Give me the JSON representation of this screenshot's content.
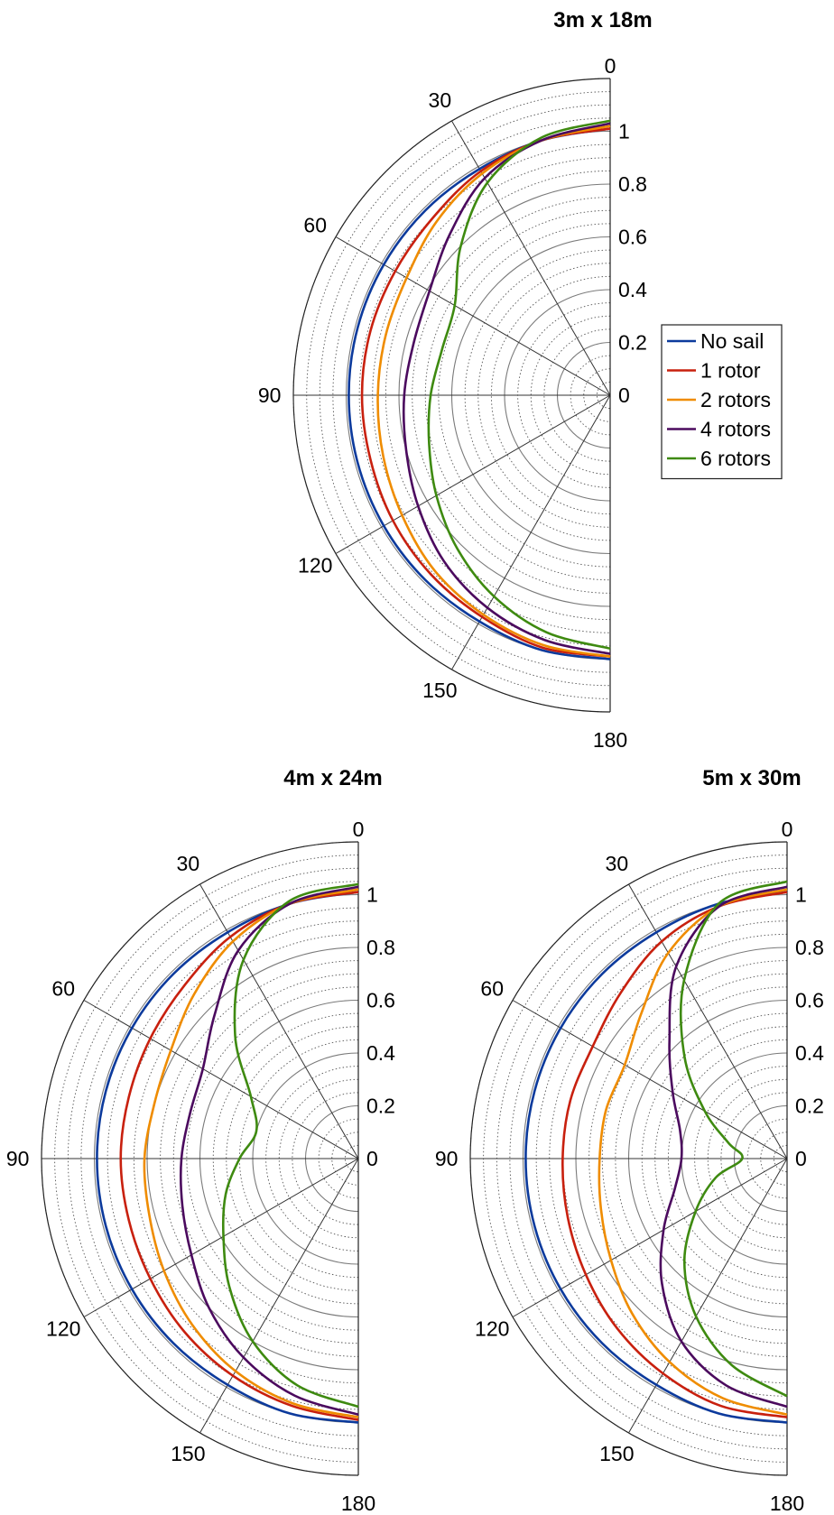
{
  "chart_data": [
    {
      "type": "polar-line",
      "title": "3m x 18m",
      "theta_ticks": [
        0,
        30,
        60,
        90,
        120,
        150,
        180
      ],
      "r_ticks": [
        0,
        0.2,
        0.4,
        0.6,
        0.8,
        1
      ],
      "r_tick_labels": [
        "0",
        "0.2",
        "0.4",
        "0.6",
        "0.8",
        "1"
      ],
      "rlim": [
        0,
        1.2
      ],
      "theta_range": [
        0,
        180
      ],
      "grid": true,
      "legend": {
        "placement": "right",
        "entries": [
          "No sail",
          "1 rotor",
          "2 rotors",
          "4 rotors",
          "6 rotors"
        ]
      },
      "series": [
        {
          "name": "No sail",
          "color": "#0c3a9c",
          "theta": [
            0,
            15,
            30,
            45,
            60,
            75,
            90,
            105,
            120,
            135,
            150,
            165,
            180
          ],
          "r": [
            1.01,
            1.0,
            0.99,
            0.99,
            0.99,
            0.99,
            0.99,
            0.99,
            0.99,
            0.99,
            0.99,
            1.0,
            1.0
          ]
        },
        {
          "name": "1 rotor",
          "color": "#c8200e",
          "theta": [
            0,
            15,
            30,
            45,
            60,
            75,
            90,
            105,
            120,
            135,
            150,
            165,
            180
          ],
          "r": [
            1.01,
            1.0,
            0.98,
            0.95,
            0.94,
            0.94,
            0.94,
            0.94,
            0.95,
            0.96,
            0.97,
            0.99,
            0.99
          ]
        },
        {
          "name": "2 rotors",
          "color": "#ef8c00",
          "theta": [
            0,
            15,
            30,
            45,
            60,
            75,
            90,
            105,
            120,
            135,
            150,
            165,
            180
          ],
          "r": [
            1.02,
            1.0,
            0.97,
            0.93,
            0.89,
            0.88,
            0.88,
            0.89,
            0.91,
            0.94,
            0.96,
            0.98,
            0.99
          ]
        },
        {
          "name": "4 rotors",
          "color": "#4b0a5e",
          "theta": [
            0,
            15,
            30,
            45,
            60,
            75,
            90,
            105,
            120,
            135,
            150,
            165,
            180
          ],
          "r": [
            1.03,
            1.0,
            0.95,
            0.86,
            0.79,
            0.77,
            0.78,
            0.8,
            0.84,
            0.89,
            0.93,
            0.96,
            0.98
          ]
        },
        {
          "name": "6 rotors",
          "color": "#3e8a10",
          "theta": [
            0,
            15,
            30,
            45,
            60,
            75,
            90,
            105,
            120,
            135,
            150,
            165,
            180
          ],
          "r": [
            1.04,
            1.01,
            0.93,
            0.8,
            0.68,
            0.66,
            0.68,
            0.71,
            0.76,
            0.82,
            0.88,
            0.93,
            0.96
          ]
        }
      ]
    },
    {
      "type": "polar-line",
      "title": "4m x 24m",
      "theta_ticks": [
        0,
        30,
        60,
        90,
        120,
        150,
        180
      ],
      "r_ticks": [
        0,
        0.2,
        0.4,
        0.6,
        0.8,
        1
      ],
      "r_tick_labels": [
        "0",
        "0.2",
        "0.4",
        "0.6",
        "0.8",
        "1"
      ],
      "rlim": [
        0,
        1.2
      ],
      "theta_range": [
        0,
        180
      ],
      "grid": true,
      "series": [
        {
          "name": "No sail",
          "color": "#0c3a9c",
          "theta": [
            0,
            15,
            30,
            45,
            60,
            75,
            90,
            105,
            120,
            135,
            150,
            165,
            180
          ],
          "r": [
            1.01,
            1.0,
            0.99,
            0.99,
            0.99,
            0.99,
            0.99,
            0.99,
            0.99,
            0.99,
            0.99,
            1.0,
            1.0
          ]
        },
        {
          "name": "1 rotor",
          "color": "#c8200e",
          "theta": [
            0,
            15,
            30,
            45,
            60,
            75,
            90,
            105,
            120,
            135,
            150,
            165,
            180
          ],
          "r": [
            1.01,
            1.0,
            0.97,
            0.93,
            0.91,
            0.9,
            0.9,
            0.9,
            0.91,
            0.93,
            0.95,
            0.97,
            0.99
          ]
        },
        {
          "name": "2 rotors",
          "color": "#ef8c00",
          "theta": [
            0,
            15,
            30,
            45,
            60,
            75,
            90,
            105,
            120,
            135,
            150,
            165,
            180
          ],
          "r": [
            1.02,
            1.0,
            0.95,
            0.88,
            0.82,
            0.8,
            0.81,
            0.82,
            0.85,
            0.89,
            0.93,
            0.96,
            0.98
          ]
        },
        {
          "name": "4 rotors",
          "color": "#4b0a5e",
          "theta": [
            0,
            15,
            30,
            45,
            60,
            75,
            90,
            105,
            120,
            135,
            150,
            165,
            180
          ],
          "r": [
            1.03,
            1.0,
            0.91,
            0.77,
            0.68,
            0.66,
            0.67,
            0.69,
            0.73,
            0.8,
            0.87,
            0.93,
            0.97
          ]
        },
        {
          "name": "6 rotors",
          "color": "#3e8a10",
          "theta": [
            0,
            15,
            30,
            45,
            60,
            75,
            90,
            105,
            120,
            135,
            150,
            165,
            180
          ],
          "r": [
            1.04,
            1.01,
            0.87,
            0.66,
            0.47,
            0.4,
            0.45,
            0.52,
            0.59,
            0.69,
            0.8,
            0.89,
            0.94
          ]
        }
      ]
    },
    {
      "type": "polar-line",
      "title": "5m x 30m",
      "theta_ticks": [
        0,
        30,
        60,
        90,
        120,
        150,
        180
      ],
      "r_ticks": [
        0,
        0.2,
        0.4,
        0.6,
        0.8,
        1
      ],
      "r_tick_labels": [
        "0",
        "0.2",
        "0.4",
        "0.6",
        "0.8",
        "1"
      ],
      "rlim": [
        0,
        1.2
      ],
      "theta_range": [
        0,
        180
      ],
      "grid": true,
      "series": [
        {
          "name": "No sail",
          "color": "#0c3a9c",
          "theta": [
            0,
            15,
            30,
            45,
            60,
            75,
            90,
            105,
            120,
            135,
            150,
            165,
            180
          ],
          "r": [
            1.01,
            1.0,
            0.99,
            0.99,
            0.99,
            0.99,
            0.99,
            0.99,
            0.99,
            0.99,
            0.99,
            1.0,
            1.0
          ]
        },
        {
          "name": "1 rotor",
          "color": "#c8200e",
          "theta": [
            0,
            15,
            30,
            45,
            60,
            75,
            90,
            105,
            120,
            135,
            150,
            165,
            180
          ],
          "r": [
            1.01,
            0.99,
            0.95,
            0.89,
            0.85,
            0.85,
            0.85,
            0.86,
            0.88,
            0.91,
            0.94,
            0.97,
            0.98
          ]
        },
        {
          "name": "2 rotors",
          "color": "#ef8c00",
          "theta": [
            0,
            15,
            30,
            45,
            60,
            75,
            90,
            105,
            120,
            135,
            150,
            165,
            180
          ],
          "r": [
            1.02,
            0.99,
            0.9,
            0.78,
            0.71,
            0.71,
            0.71,
            0.73,
            0.77,
            0.83,
            0.89,
            0.94,
            0.97
          ]
        },
        {
          "name": "4 rotors",
          "color": "#4b0a5e",
          "theta": [
            0,
            15,
            30,
            45,
            60,
            75,
            90,
            105,
            120,
            135,
            150,
            165,
            180
          ],
          "r": [
            1.03,
            0.99,
            0.84,
            0.63,
            0.5,
            0.42,
            0.4,
            0.44,
            0.54,
            0.67,
            0.8,
            0.89,
            0.94
          ]
        },
        {
          "name": "6 rotors",
          "color": "#3e8a10",
          "theta": [
            0,
            15,
            30,
            45,
            60,
            75,
            90,
            105,
            120,
            135,
            150,
            165,
            180
          ],
          "r": [
            1.05,
            1.0,
            0.78,
            0.55,
            0.36,
            0.23,
            0.17,
            0.28,
            0.4,
            0.55,
            0.69,
            0.81,
            0.9
          ]
        }
      ]
    }
  ]
}
